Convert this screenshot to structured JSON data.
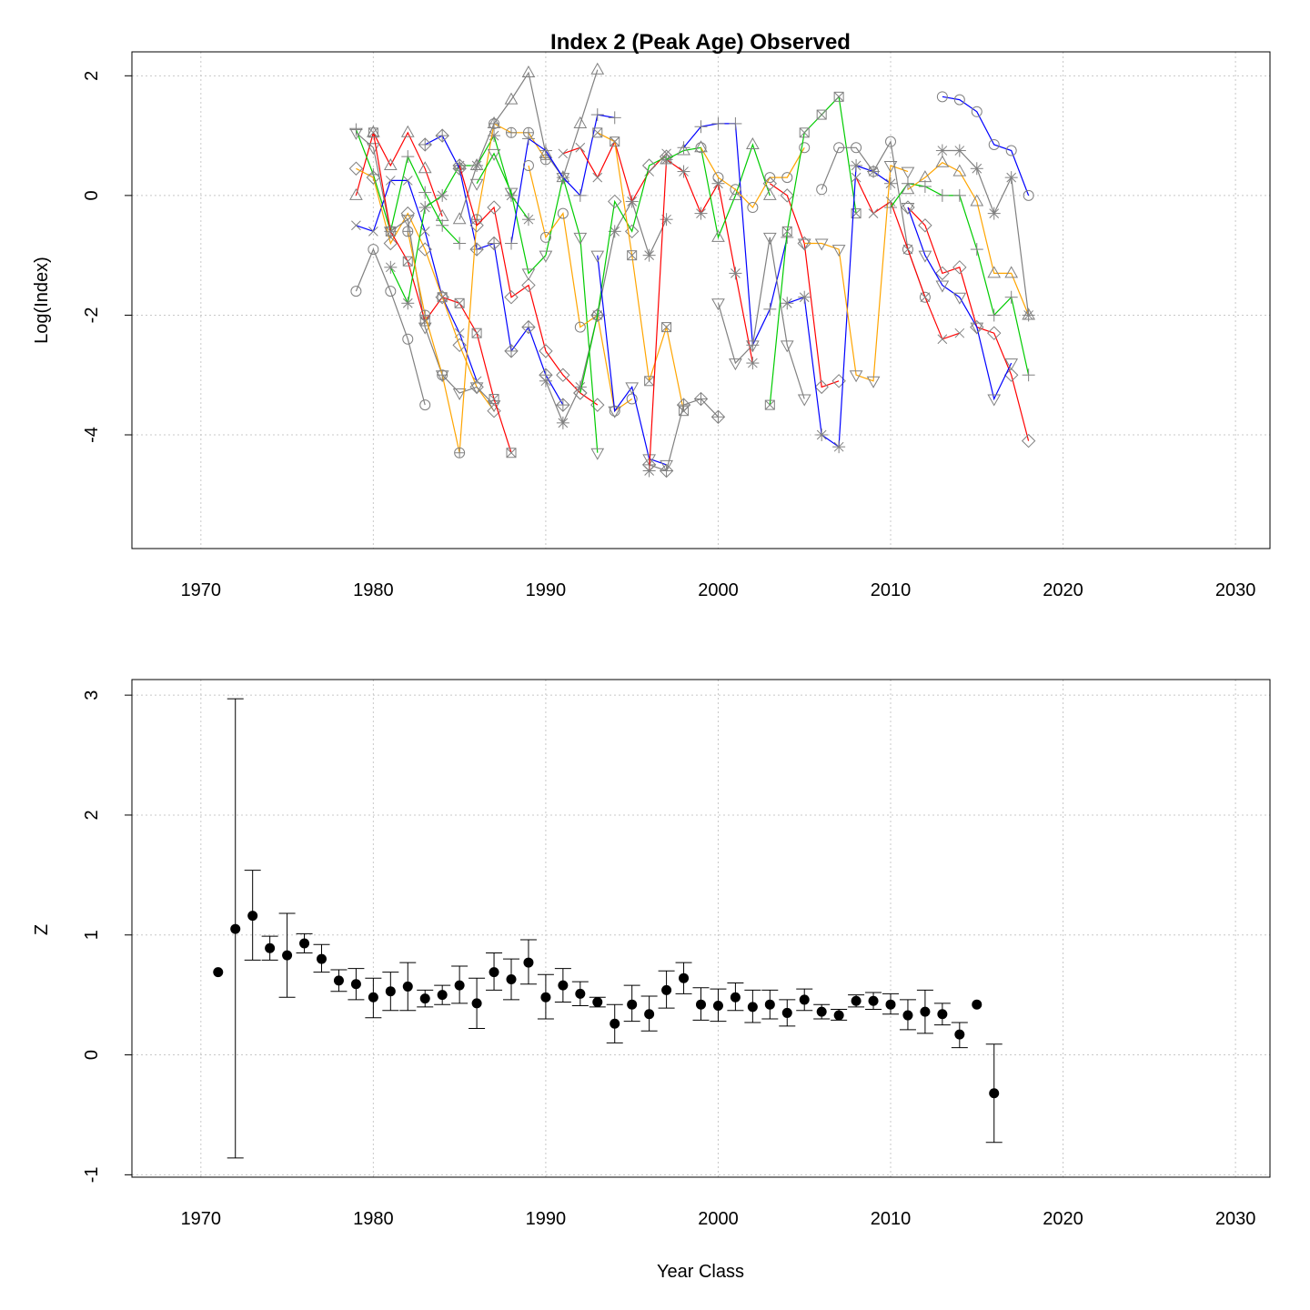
{
  "chart_data": [
    {
      "type": "line",
      "title": "Index 2 (Peak Age) Observed",
      "xlabel": "",
      "ylabel": "Log(Index)",
      "xlim": [
        1966,
        2032
      ],
      "ylim": [
        -5.9,
        2.4
      ],
      "xticks": [
        "1970",
        "1980",
        "1990",
        "2000",
        "2010",
        "2020",
        "2030"
      ],
      "yticks": [
        "-4",
        "-2",
        "0",
        "2"
      ],
      "grid": true,
      "legend": "none",
      "colors": [
        "#808080",
        "#ff0000",
        "#00cc00",
        "#0000ff",
        "#ffa500"
      ],
      "series": [
        {
          "color": "#808080",
          "marker": "circle",
          "x": [
            1979,
            1980,
            1981,
            1982,
            1983
          ],
          "y": [
            -1.6,
            -0.9,
            -1.6,
            -2.4,
            -3.5
          ]
        },
        {
          "color": "#ff0000",
          "marker": "triangle",
          "x": [
            1979,
            1980,
            1981,
            1982,
            1983,
            1984
          ],
          "y": [
            0.0,
            1.05,
            0.5,
            1.05,
            0.45,
            -0.35
          ]
        },
        {
          "color": "#00cc00",
          "marker": "plus",
          "x": [
            1979,
            1980,
            1981,
            1982,
            1983,
            1984,
            1985
          ],
          "y": [
            1.1,
            0.35,
            -0.6,
            0.65,
            0.05,
            -0.5,
            -0.8
          ]
        },
        {
          "color": "#0000ff",
          "marker": "cross",
          "x": [
            1979,
            1980,
            1981,
            1982,
            1983,
            1984,
            1985,
            1986
          ],
          "y": [
            -0.5,
            -0.6,
            0.25,
            0.25,
            -0.6,
            -1.7,
            -2.3,
            -3.1
          ]
        },
        {
          "color": "#ffa500",
          "marker": "diamond",
          "x": [
            1979,
            1980,
            1981,
            1982,
            1983,
            1984,
            1985,
            1986,
            1987
          ],
          "y": [
            0.45,
            0.3,
            -0.8,
            -0.3,
            -0.9,
            -1.7,
            -2.5,
            -3.2,
            -3.6
          ]
        },
        {
          "color": "#808080",
          "marker": "triangle-down",
          "x": [
            1979,
            1980,
            1981,
            1982,
            1983,
            1984,
            1985,
            1986,
            1987
          ],
          "y": [
            1.05,
            0.8,
            -0.6,
            -0.4,
            -2.2,
            -3.0,
            -3.3,
            -3.2,
            -3.5
          ]
        },
        {
          "color": "#ff0000",
          "marker": "boxed-x",
          "x": [
            1980,
            1981,
            1982,
            1983,
            1984,
            1985,
            1986,
            1987,
            1988
          ],
          "y": [
            1.05,
            -0.6,
            -1.1,
            -2.1,
            -1.7,
            -1.8,
            -2.3,
            -3.4,
            -4.3
          ]
        },
        {
          "color": "#00cc00",
          "marker": "asterisk",
          "x": [
            1981,
            1982,
            1983,
            1984,
            1985,
            1986,
            1987,
            1988,
            1989
          ],
          "y": [
            -1.2,
            -1.8,
            -0.2,
            0.0,
            0.5,
            0.5,
            1.0,
            0.0,
            -0.4
          ]
        },
        {
          "color": "#0000ff",
          "marker": "diamond-plus",
          "x": [
            1983,
            1984,
            1985,
            1986,
            1987,
            1988,
            1989,
            1990,
            1991
          ],
          "y": [
            0.85,
            1.0,
            0.45,
            -0.9,
            -0.8,
            -2.6,
            -2.2,
            -3.0,
            -3.5
          ]
        },
        {
          "color": "#ffa500",
          "marker": "circle-plus",
          "x": [
            1982,
            1983,
            1984,
            1985,
            1986,
            1987,
            1988,
            1989,
            1990
          ],
          "y": [
            -0.6,
            -2.0,
            -3.0,
            -4.3,
            -0.4,
            1.2,
            1.05,
            1.05,
            0.6
          ]
        },
        {
          "color": "#808080",
          "marker": "triangle",
          "x": [
            1985,
            1986,
            1987,
            1988,
            1989,
            1990,
            1991,
            1992,
            1993
          ],
          "y": [
            -0.4,
            0.5,
            1.2,
            1.6,
            2.05,
            0.7,
            0.3,
            1.2,
            2.1
          ]
        },
        {
          "color": "#ff0000",
          "marker": "diamond",
          "x": [
            1985,
            1986,
            1987,
            1988,
            1989,
            1990,
            1991,
            1992,
            1993
          ],
          "y": [
            0.5,
            -0.5,
            -0.2,
            -1.7,
            -1.5,
            -2.6,
            -3.0,
            -3.3,
            -3.5
          ]
        },
        {
          "color": "#00cc00",
          "marker": "triangle-down",
          "x": [
            1986,
            1987,
            1988,
            1989,
            1990,
            1991,
            1992,
            1993
          ],
          "y": [
            0.2,
            0.7,
            0.05,
            -1.3,
            -1.0,
            0.3,
            -0.7,
            -4.3
          ]
        },
        {
          "color": "#0000ff",
          "marker": "plus",
          "x": [
            1988,
            1989,
            1990,
            1991,
            1992,
            1993,
            1994
          ],
          "y": [
            -0.8,
            0.95,
            0.75,
            0.3,
            0.0,
            1.35,
            1.3
          ]
        },
        {
          "color": "#ffa500",
          "marker": "circle",
          "x": [
            1989,
            1990,
            1991,
            1992,
            1993,
            1994,
            1995
          ],
          "y": [
            0.5,
            -0.7,
            -0.3,
            -2.2,
            -2.0,
            -3.6,
            -3.4
          ]
        },
        {
          "color": "#808080",
          "marker": "asterisk",
          "x": [
            1990,
            1991,
            1992,
            1993,
            1994,
            1995,
            1996,
            1997
          ],
          "y": [
            -3.1,
            -3.8,
            -3.2,
            -2.0,
            -0.6,
            -0.1,
            -1.0,
            -0.4
          ]
        },
        {
          "color": "#ff0000",
          "marker": "cross",
          "x": [
            1991,
            1992,
            1993,
            1994,
            1995,
            1996,
            1997
          ],
          "y": [
            0.7,
            0.8,
            0.3,
            0.9,
            -0.1,
            0.4,
            0.7
          ]
        },
        {
          "color": "#00cc00",
          "marker": "diamond",
          "x": [
            1992,
            1993,
            1994,
            1995,
            1996,
            1997
          ],
          "y": [
            -3.3,
            -2.0,
            -0.1,
            -0.6,
            0.5,
            0.65
          ]
        },
        {
          "color": "#0000ff",
          "marker": "triangle-down",
          "x": [
            1993,
            1994,
            1995,
            1996,
            1997
          ],
          "y": [
            -1.0,
            -3.6,
            -3.2,
            -4.4,
            -4.5
          ]
        },
        {
          "color": "#ffa500",
          "marker": "boxed-x",
          "x": [
            1993,
            1994,
            1995,
            1996,
            1997,
            1998
          ],
          "y": [
            1.05,
            0.9,
            -1.0,
            -3.1,
            -2.2,
            -3.6
          ]
        },
        {
          "color": "#808080",
          "marker": "diamond-plus",
          "x": [
            1996,
            1997,
            1998,
            1999,
            2000
          ],
          "y": [
            -4.5,
            -4.6,
            -3.5,
            -3.4,
            -3.7
          ]
        },
        {
          "color": "#ff0000",
          "marker": "asterisk",
          "x": [
            1996,
            1997,
            1998,
            1999,
            2000,
            2001,
            2002
          ],
          "y": [
            -4.6,
            0.6,
            0.4,
            -0.3,
            0.2,
            -1.3,
            -2.8
          ]
        },
        {
          "color": "#00cc00",
          "marker": "triangle",
          "x": [
            1997,
            1998,
            1999,
            2000,
            2001,
            2002,
            2003
          ],
          "y": [
            0.6,
            0.75,
            0.8,
            -0.7,
            0.0,
            0.85,
            0.0
          ]
        },
        {
          "color": "#0000ff",
          "marker": "plus",
          "x": [
            1998,
            1999,
            2000,
            2001,
            2002,
            2003,
            2004
          ],
          "y": [
            0.8,
            1.15,
            1.2,
            1.2,
            -2.5,
            -1.9,
            -0.7
          ]
        },
        {
          "color": "#ffa500",
          "marker": "circle",
          "x": [
            1999,
            2000,
            2001,
            2002,
            2003,
            2004,
            2005
          ],
          "y": [
            0.8,
            0.3,
            0.1,
            -0.2,
            0.3,
            0.3,
            0.8
          ]
        },
        {
          "color": "#808080",
          "marker": "triangle-down",
          "x": [
            2000,
            2001,
            2002,
            2003,
            2004,
            2005
          ],
          "y": [
            -1.8,
            -2.8,
            -2.5,
            -0.7,
            -2.5,
            -3.4
          ]
        },
        {
          "color": "#ff0000",
          "marker": "diamond",
          "x": [
            2003,
            2004,
            2005,
            2006,
            2007
          ],
          "y": [
            0.2,
            0.0,
            -0.8,
            -3.2,
            -3.1
          ]
        },
        {
          "color": "#00cc00",
          "marker": "boxed-x",
          "x": [
            2003,
            2004,
            2005,
            2006,
            2007,
            2008
          ],
          "y": [
            -3.5,
            -0.6,
            1.05,
            1.35,
            1.65,
            -0.3
          ]
        },
        {
          "color": "#0000ff",
          "marker": "asterisk",
          "x": [
            2004,
            2005,
            2006,
            2007,
            2008,
            2009,
            2010
          ],
          "y": [
            -1.8,
            -1.7,
            -4.0,
            -4.2,
            0.5,
            0.4,
            0.2
          ]
        },
        {
          "color": "#ffa500",
          "marker": "triangle-down",
          "x": [
            2005,
            2006,
            2007,
            2008,
            2009,
            2010,
            2011
          ],
          "y": [
            -0.8,
            -0.8,
            -0.9,
            -3.0,
            -3.1,
            0.5,
            0.4
          ]
        },
        {
          "color": "#808080",
          "marker": "circle",
          "x": [
            2006,
            2007,
            2008,
            2009,
            2010,
            2011,
            2012
          ],
          "y": [
            0.1,
            0.8,
            0.8,
            0.4,
            0.9,
            -0.9,
            -1.7
          ]
        },
        {
          "color": "#ff0000",
          "marker": "cross",
          "x": [
            2008,
            2009,
            2010,
            2011,
            2012,
            2013,
            2014
          ],
          "y": [
            0.3,
            -0.3,
            -0.1,
            -0.9,
            -1.7,
            -2.4,
            -2.3
          ]
        },
        {
          "color": "#00cc00",
          "marker": "plus",
          "x": [
            2010,
            2011,
            2012,
            2013,
            2014,
            2015,
            2016,
            2017,
            2018
          ],
          "y": [
            -0.2,
            0.2,
            0.15,
            0.0,
            0.0,
            -0.9,
            -2.0,
            -1.7,
            -3.0
          ]
        },
        {
          "color": "#0000ff",
          "marker": "circle",
          "x": [
            2013,
            2014,
            2015,
            2016,
            2017,
            2018
          ],
          "y": [
            1.65,
            1.6,
            1.4,
            0.85,
            0.75,
            0.0
          ]
        },
        {
          "color": "#ffa500",
          "marker": "triangle",
          "x": [
            2011,
            2012,
            2013,
            2014,
            2015,
            2016,
            2017,
            2018
          ],
          "y": [
            0.1,
            0.3,
            0.55,
            0.4,
            -0.1,
            -1.3,
            -1.3,
            -2.0
          ]
        },
        {
          "color": "#808080",
          "marker": "asterisk",
          "x": [
            2013,
            2014,
            2015,
            2016,
            2017,
            2018
          ],
          "y": [
            0.75,
            0.75,
            0.45,
            -0.3,
            0.3,
            -2.0
          ]
        },
        {
          "color": "#ff0000",
          "marker": "diamond",
          "x": [
            2011,
            2012,
            2013,
            2014,
            2015,
            2016,
            2017,
            2018
          ],
          "y": [
            -0.2,
            -0.5,
            -1.3,
            -1.2,
            -2.2,
            -2.3,
            -3.0,
            -4.1
          ]
        },
        {
          "color": "#0000ff",
          "marker": "triangle-down",
          "x": [
            2011,
            2012,
            2013,
            2014,
            2015,
            2016,
            2017
          ],
          "y": [
            -0.2,
            -1.0,
            -1.5,
            -1.7,
            -2.2,
            -3.4,
            -2.8
          ]
        }
      ]
    },
    {
      "type": "scatter",
      "title": "",
      "xlabel": "Year Class",
      "ylabel": "Z",
      "xlim": [
        1966,
        2032
      ],
      "ylim": [
        -1.02,
        3.13
      ],
      "xticks": [
        "1970",
        "1980",
        "1990",
        "2000",
        "2010",
        "2020",
        "2030"
      ],
      "yticks": [
        "-1",
        "0",
        "1",
        "2",
        "3"
      ],
      "grid": true,
      "legend": "none",
      "error_bars": true,
      "x": [
        1971,
        1972,
        1973,
        1974,
        1975,
        1976,
        1977,
        1978,
        1979,
        1980,
        1981,
        1982,
        1983,
        1984,
        1985,
        1986,
        1987,
        1988,
        1989,
        1990,
        1991,
        1992,
        1993,
        1994,
        1995,
        1996,
        1997,
        1998,
        1999,
        2000,
        2001,
        2002,
        2003,
        2004,
        2005,
        2006,
        2007,
        2008,
        2009,
        2010,
        2011,
        2012,
        2013,
        2014,
        2015,
        2016
      ],
      "y": [
        0.69,
        1.05,
        1.16,
        0.89,
        0.83,
        0.93,
        0.8,
        0.62,
        0.59,
        0.48,
        0.53,
        0.57,
        0.47,
        0.5,
        0.58,
        0.43,
        0.69,
        0.63,
        0.77,
        0.48,
        0.58,
        0.51,
        0.44,
        0.26,
        0.42,
        0.34,
        0.54,
        0.64,
        0.42,
        0.41,
        0.48,
        0.4,
        0.42,
        0.35,
        0.46,
        0.36,
        0.33,
        0.45,
        0.45,
        0.42,
        0.33,
        0.36,
        0.34,
        0.17,
        0.42,
        -0.32
      ],
      "lower": [
        null,
        -0.86,
        0.79,
        0.79,
        0.48,
        0.85,
        0.69,
        0.53,
        0.46,
        0.31,
        0.37,
        0.37,
        0.4,
        0.42,
        0.43,
        0.22,
        0.54,
        0.46,
        0.59,
        0.3,
        0.44,
        0.41,
        0.4,
        0.1,
        0.28,
        0.2,
        0.39,
        0.51,
        0.29,
        0.28,
        0.37,
        0.27,
        0.3,
        0.24,
        0.37,
        0.3,
        0.29,
        0.4,
        0.38,
        0.34,
        0.21,
        0.18,
        0.25,
        0.06,
        null,
        -0.73
      ],
      "upper": [
        null,
        2.97,
        1.54,
        0.99,
        1.18,
        1.01,
        0.92,
        0.71,
        0.72,
        0.64,
        0.69,
        0.77,
        0.54,
        0.58,
        0.74,
        0.64,
        0.85,
        0.8,
        0.96,
        0.67,
        0.72,
        0.61,
        0.48,
        0.42,
        0.58,
        0.49,
        0.7,
        0.77,
        0.56,
        0.55,
        0.6,
        0.54,
        0.54,
        0.46,
        0.55,
        0.42,
        0.38,
        0.5,
        0.52,
        0.51,
        0.46,
        0.54,
        0.43,
        0.27,
        null,
        0.09
      ]
    }
  ]
}
